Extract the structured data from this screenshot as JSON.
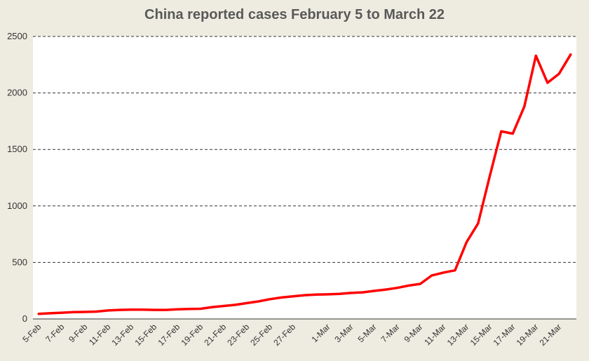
{
  "chart_data": {
    "type": "line",
    "title": "China reported cases February 5 to March 22",
    "xlabel": "",
    "ylabel": "",
    "ylim": [
      0,
      2500
    ],
    "yticks": [
      0,
      500,
      1000,
      1500,
      2000,
      2500
    ],
    "grid": true,
    "line_color": "#ff0000",
    "x": [
      "5-Feb",
      "6-Feb",
      "7-Feb",
      "8-Feb",
      "9-Feb",
      "10-Feb",
      "11-Feb",
      "12-Feb",
      "13-Feb",
      "14-Feb",
      "15-Feb",
      "16-Feb",
      "17-Feb",
      "18-Feb",
      "19-Feb",
      "20-Feb",
      "21-Feb",
      "22-Feb",
      "23-Feb",
      "24-Feb",
      "25-Feb",
      "26-Feb",
      "27-Feb",
      "28-Feb",
      "29-Feb",
      "1-Mar",
      "2-Mar",
      "3-Mar",
      "4-Mar",
      "5-Mar",
      "6-Mar",
      "7-Mar",
      "8-Mar",
      "9-Mar",
      "10-Mar",
      "11-Mar",
      "12-Mar",
      "13-Mar",
      "14-Mar",
      "15-Mar",
      "16-Mar",
      "17-Mar",
      "18-Mar",
      "19-Mar",
      "20-Mar",
      "21-Mar",
      "22-Mar"
    ],
    "x_tick_labels": [
      "5-Feb",
      "7-Feb",
      "9-Feb",
      "11-Feb",
      "13-Feb",
      "15-Feb",
      "17-Feb",
      "19-Feb",
      "21-Feb",
      "23-Feb",
      "25-Feb",
      "27-Feb",
      "1-Mar",
      "3-Mar",
      "5-Mar",
      "7-Mar",
      "9-Mar",
      "11-Mar",
      "13-Mar",
      "15-Mar",
      "17-Mar",
      "19-Mar",
      "21-Mar"
    ],
    "series": [
      {
        "values": [
          45,
          50,
          55,
          60,
          62,
          65,
          75,
          80,
          82,
          82,
          80,
          80,
          85,
          88,
          90,
          105,
          115,
          125,
          140,
          155,
          175,
          190,
          200,
          210,
          215,
          218,
          222,
          230,
          235,
          248,
          260,
          275,
          295,
          310,
          385,
          410,
          430,
          680,
          845,
          1260,
          1660,
          1640,
          1880,
          2330,
          2090,
          2170,
          2340
        ]
      }
    ]
  }
}
